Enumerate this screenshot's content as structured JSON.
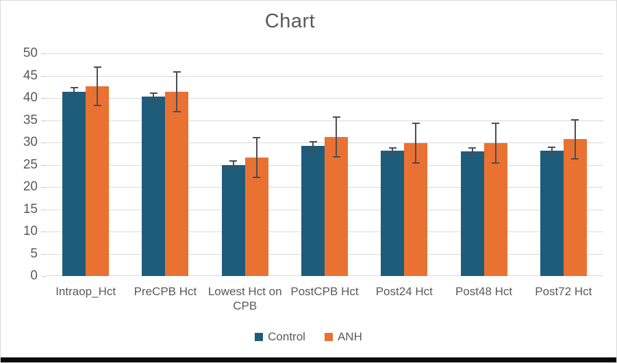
{
  "title": "Chart",
  "colors": {
    "control": "#1e5c7b",
    "anh": "#e97232",
    "text": "#595959",
    "gridline": "#d9d9d9",
    "error_bar": "#4a4d52",
    "bottom_bar": "#0b0b0b"
  },
  "legend": {
    "items": [
      {
        "label": "Control",
        "color": "#1e5c7b"
      },
      {
        "label": "ANH",
        "color": "#e97232"
      }
    ]
  },
  "chart_data": {
    "type": "bar",
    "title": "Chart",
    "categories": [
      "Intraop_Hct",
      "PreCPB Hct",
      "Lowest Hct on CPB",
      "PostCPB Hct",
      "Post24 Hct",
      "Post48 Hct",
      "Post72 Hct"
    ],
    "series": [
      {
        "name": "Control",
        "color": "#1e5c7b",
        "values": [
          41.4,
          40.3,
          25.0,
          29.2,
          28.1,
          28.0,
          28.2
        ],
        "errors": [
          1.0,
          1.0,
          1.0,
          1.1,
          0.9,
          0.9,
          0.9
        ]
      },
      {
        "name": "ANH",
        "color": "#e97232",
        "values": [
          42.6,
          41.4,
          26.6,
          31.2,
          29.9,
          29.9,
          30.7
        ],
        "errors": [
          4.5,
          4.6,
          4.6,
          4.6,
          4.6,
          4.6,
          4.6
        ]
      }
    ],
    "xlabel": "",
    "ylabel": "",
    "ylim": [
      0,
      50
    ],
    "yticks": [
      0,
      5,
      10,
      15,
      20,
      25,
      30,
      35,
      40,
      45,
      50
    ],
    "grid": true,
    "error_bars": true,
    "legend_position": "bottom"
  }
}
